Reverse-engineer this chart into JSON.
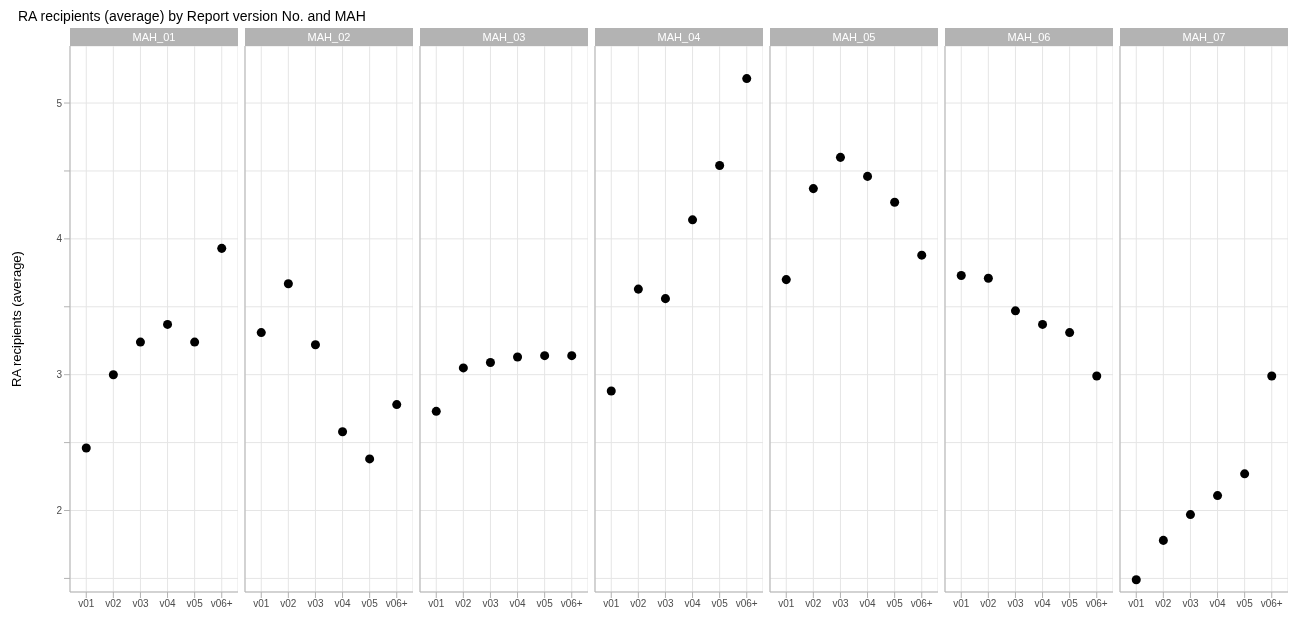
{
  "chart_data": [
    {
      "type": "scatter",
      "title": "RA recipients (average) by Report version No. and MAH",
      "subtitle": "MAH_01",
      "ylabel": "RA recipients (average)",
      "categories": [
        "v01",
        "v02",
        "v03",
        "v04",
        "v05",
        "v06+"
      ],
      "values": [
        2.46,
        3.0,
        3.24,
        3.37,
        3.24,
        3.93
      ],
      "color": "#000000",
      "marker": "circle",
      "ylim": [
        1.4,
        5.42
      ],
      "yticks": [
        {
          "value": 1.5,
          "label": null
        },
        2,
        {
          "value": 2.5,
          "label": null
        },
        3,
        {
          "value": 3.5,
          "label": null
        },
        4,
        {
          "value": 4.5,
          "label": null
        },
        5
      ],
      "grid": true,
      "legend": false
    },
    {
      "type": "scatter",
      "subtitle": "MAH_02",
      "categories": [
        "v01",
        "v02",
        "v03",
        "v04",
        "v05",
        "v06+"
      ],
      "values": [
        3.31,
        3.67,
        3.22,
        2.58,
        2.38,
        2.78
      ],
      "color": "#000000",
      "marker": "circle",
      "ylim": [
        1.4,
        5.42
      ],
      "yticks": [
        {
          "value": 1.5,
          "label": null
        },
        2,
        {
          "value": 2.5,
          "label": null
        },
        3,
        {
          "value": 3.5,
          "label": null
        },
        4,
        {
          "value": 4.5,
          "label": null
        },
        5
      ],
      "grid": true,
      "legend": false,
      "tick_labels": "x"
    },
    {
      "type": "scatter",
      "subtitle": "MAH_03",
      "categories": [
        "v01",
        "v02",
        "v03",
        "v04",
        "v05",
        "v06+"
      ],
      "values": [
        2.73,
        3.05,
        3.09,
        3.13,
        3.14,
        3.14
      ],
      "color": "#000000",
      "marker": "circle",
      "ylim": [
        1.4,
        5.42
      ],
      "yticks": [
        {
          "value": 1.5,
          "label": null
        },
        2,
        {
          "value": 2.5,
          "label": null
        },
        3,
        {
          "value": 3.5,
          "label": null
        },
        4,
        {
          "value": 4.5,
          "label": null
        },
        5
      ],
      "grid": true,
      "legend": false,
      "tick_labels": "x"
    },
    {
      "type": "scatter",
      "subtitle": "MAH_04",
      "categories": [
        "v01",
        "v02",
        "v03",
        "v04",
        "v05",
        "v06+"
      ],
      "values": [
        2.88,
        3.63,
        3.56,
        4.14,
        4.54,
        5.18
      ],
      "color": "#000000",
      "marker": "circle",
      "ylim": [
        1.4,
        5.42
      ],
      "yticks": [
        {
          "value": 1.5,
          "label": null
        },
        2,
        {
          "value": 2.5,
          "label": null
        },
        3,
        {
          "value": 3.5,
          "label": null
        },
        4,
        {
          "value": 4.5,
          "label": null
        },
        5
      ],
      "grid": true,
      "legend": false,
      "tick_labels": "x"
    },
    {
      "type": "scatter",
      "subtitle": "MAH_05",
      "categories": [
        "v01",
        "v02",
        "v03",
        "v04",
        "v05",
        "v06+"
      ],
      "values": [
        3.7,
        4.37,
        4.6,
        4.46,
        4.27,
        3.88
      ],
      "color": "#000000",
      "marker": "circle",
      "ylim": [
        1.4,
        5.42
      ],
      "yticks": [
        {
          "value": 1.5,
          "label": null
        },
        2,
        {
          "value": 2.5,
          "label": null
        },
        3,
        {
          "value": 3.5,
          "label": null
        },
        4,
        {
          "value": 4.5,
          "label": null
        },
        5
      ],
      "grid": true,
      "legend": false,
      "tick_labels": "x"
    },
    {
      "type": "scatter",
      "subtitle": "MAH_06",
      "categories": [
        "v01",
        "v02",
        "v03",
        "v04",
        "v05",
        "v06+"
      ],
      "values": [
        3.73,
        3.71,
        3.47,
        3.37,
        3.31,
        2.99
      ],
      "color": "#000000",
      "marker": "circle",
      "ylim": [
        1.4,
        5.42
      ],
      "yticks": [
        {
          "value": 1.5,
          "label": null
        },
        2,
        {
          "value": 2.5,
          "label": null
        },
        3,
        {
          "value": 3.5,
          "label": null
        },
        4,
        {
          "value": 4.5,
          "label": null
        },
        5
      ],
      "grid": true,
      "legend": false,
      "tick_labels": "x"
    },
    {
      "type": "scatter",
      "subtitle": "MAH_07",
      "categories": [
        "v01",
        "v02",
        "v03",
        "v04",
        "v05",
        "v06+"
      ],
      "values": [
        1.49,
        1.78,
        1.97,
        2.11,
        2.27,
        2.99
      ],
      "color": "#000000",
      "marker": "circle",
      "ylim": [
        1.4,
        5.42
      ],
      "yticks": [
        {
          "value": 1.5,
          "label": null
        },
        2,
        {
          "value": 2.5,
          "label": null
        },
        3,
        {
          "value": 3.5,
          "label": null
        },
        4,
        {
          "value": 4.5,
          "label": null
        },
        5
      ],
      "grid": true,
      "legend": false,
      "tick_labels": "x"
    }
  ]
}
